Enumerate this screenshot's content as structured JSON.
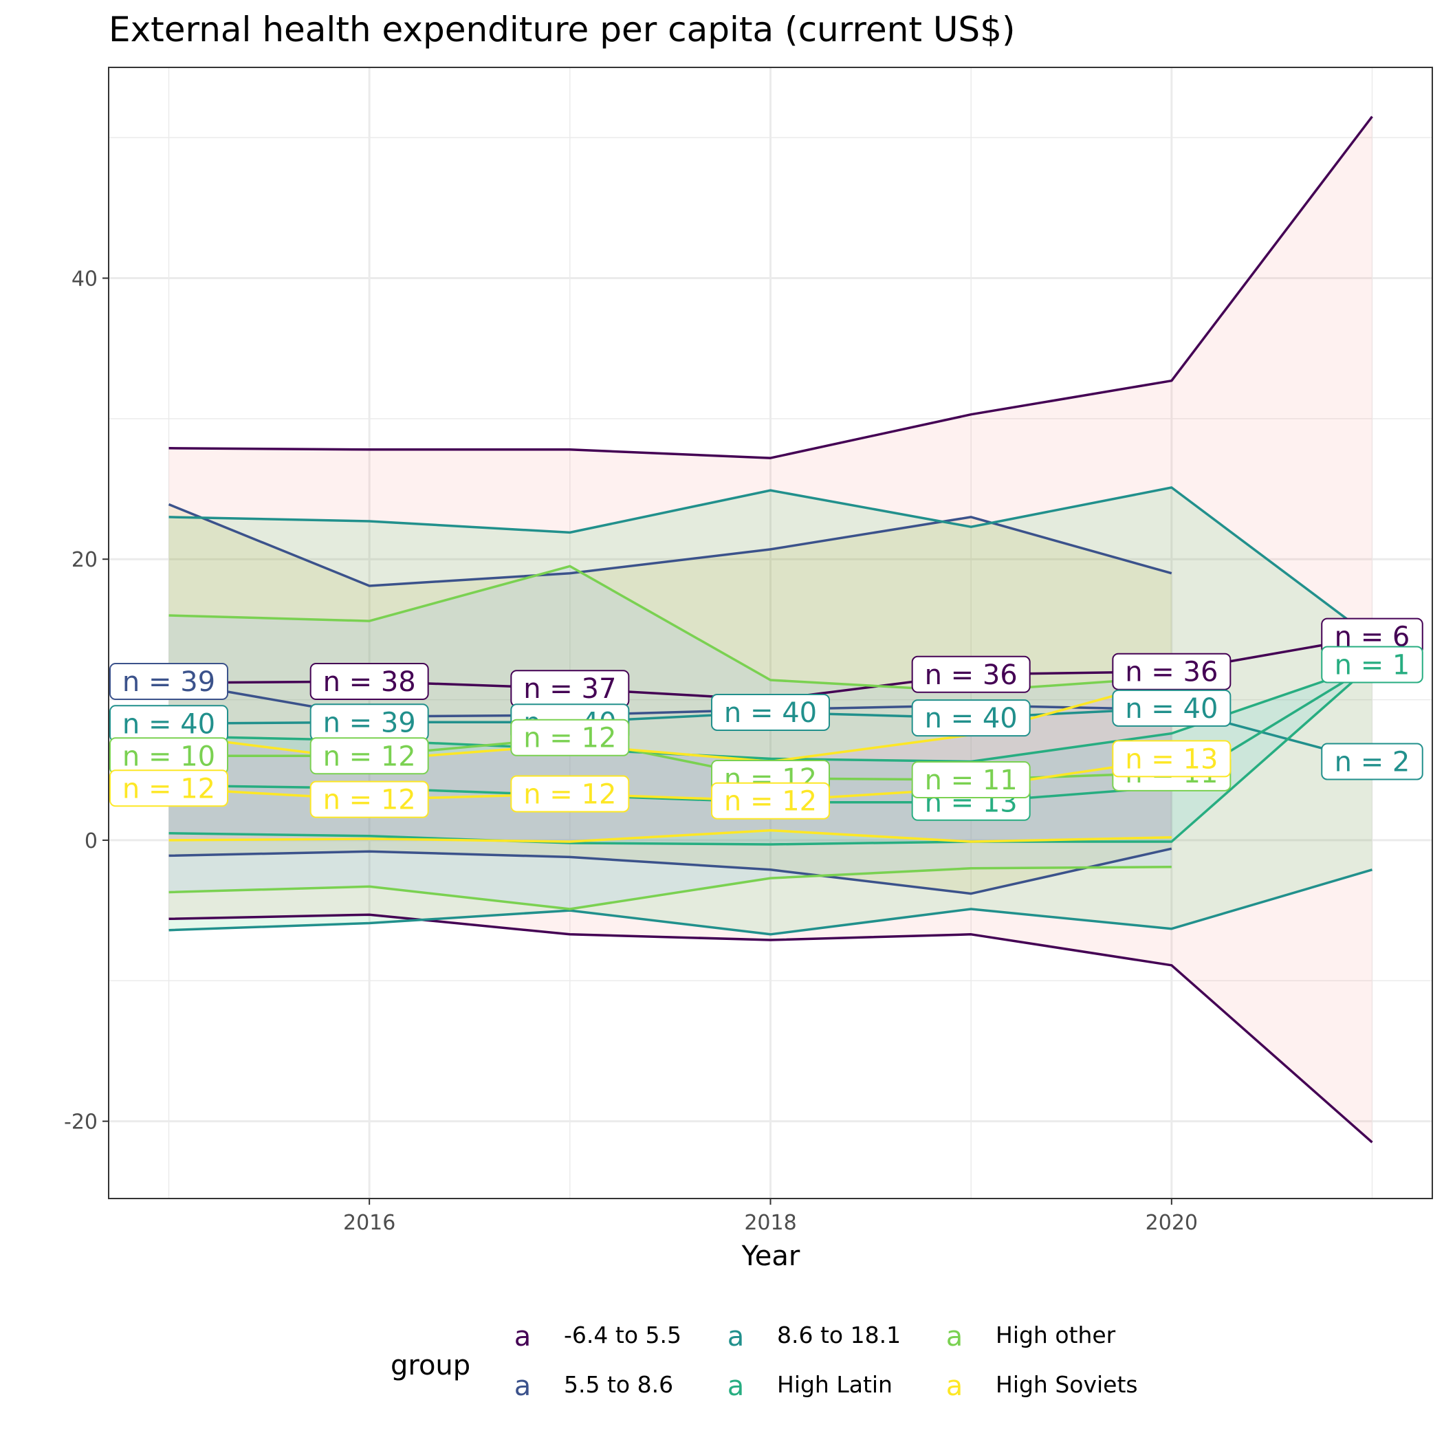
{
  "chart_data": {
    "type": "line",
    "title": "External health expenditure per capita (current US$)",
    "xlabel": "Year",
    "ylabel": "",
    "xlim": [
      2014.7,
      2021.3
    ],
    "ylim": [
      -25.5,
      55
    ],
    "x_ticks": [
      2016,
      2018,
      2020
    ],
    "y_ticks": [
      -20,
      0,
      20,
      40
    ],
    "grid": true,
    "legend": {
      "title": "group",
      "position": "bottom",
      "key_glyph": "a",
      "layout": [
        [
          0,
          2,
          4
        ],
        [
          1,
          3,
          5
        ]
      ]
    },
    "series": [
      {
        "name": "-6.4 to 5.5",
        "color": "#440154",
        "fill": "#F8766D",
        "x": [
          2015,
          2016,
          2017,
          2018,
          2019,
          2020,
          2021
        ],
        "mean": [
          11.2,
          11.3,
          10.8,
          10.0,
          11.8,
          12.0,
          14.5
        ],
        "upper": [
          27.9,
          27.8,
          27.8,
          27.2,
          30.3,
          32.7,
          51.5
        ],
        "lower": [
          -5.6,
          -5.3,
          -6.7,
          -7.1,
          -6.7,
          -8.9,
          -21.5
        ],
        "n": [
          null,
          38,
          37,
          null,
          36,
          36,
          6
        ]
      },
      {
        "name": "5.5 to 8.6",
        "color": "#3B528B",
        "fill": "#B79F00",
        "x": [
          2015,
          2016,
          2017,
          2018,
          2019,
          2020
        ],
        "mean": [
          11.3,
          8.8,
          8.9,
          9.3,
          9.6,
          9.3
        ],
        "upper": [
          23.9,
          18.1,
          19.0,
          20.7,
          23.0,
          19.0
        ],
        "lower": [
          -1.1,
          -0.8,
          -1.2,
          -2.1,
          -3.8,
          -0.6
        ],
        "n": [
          39,
          null,
          null,
          null,
          null,
          null
        ]
      },
      {
        "name": "8.6 to 18.1",
        "color": "#21908C",
        "fill": "#00BA38",
        "x": [
          2015,
          2016,
          2017,
          2018,
          2019,
          2020,
          2021
        ],
        "mean": [
          8.3,
          8.4,
          8.4,
          9.1,
          8.7,
          9.4,
          5.6
        ],
        "upper": [
          23.0,
          22.7,
          21.9,
          24.9,
          22.3,
          25.1,
          14.4
        ],
        "lower": [
          -6.4,
          -5.9,
          -5.0,
          -6.7,
          -4.9,
          -6.3,
          -2.1
        ],
        "n": [
          40,
          39,
          40,
          40,
          40,
          40,
          2
        ]
      },
      {
        "name": "High Latin",
        "color": "#27AD81",
        "fill": "#00BFC4",
        "x": [
          2015,
          2016,
          2017,
          2018,
          2019,
          2020,
          2021
        ],
        "mean": [
          3.9,
          3.7,
          3.2,
          2.7,
          2.7,
          3.8,
          12.5
        ],
        "upper": [
          7.4,
          7.1,
          6.5,
          5.8,
          5.6,
          7.6,
          12.5
        ],
        "lower": [
          0.5,
          0.3,
          -0.2,
          -0.3,
          -0.1,
          -0.1,
          12.5
        ],
        "n": [
          null,
          null,
          null,
          null,
          13,
          null,
          1
        ]
      },
      {
        "name": "High other",
        "color": "#7AD151",
        "fill": "#619CFF",
        "x": [
          2015,
          2016,
          2017,
          2018,
          2019,
          2020
        ],
        "mean": [
          6.0,
          6.0,
          7.3,
          4.4,
          4.3,
          4.8
        ],
        "upper": [
          16.0,
          15.6,
          19.5,
          11.4,
          10.6,
          11.6
        ],
        "lower": [
          -3.7,
          -3.3,
          -4.9,
          -2.7,
          -2.0,
          -1.9
        ],
        "n": [
          10,
          12,
          12,
          12,
          11,
          11
        ]
      },
      {
        "name": "High Soviets",
        "color": "#FDE725",
        "fill": "#F564E3",
        "x": [
          2015,
          2016,
          2017,
          2018,
          2019,
          2020
        ],
        "mean": [
          3.7,
          2.9,
          3.3,
          2.8,
          3.7,
          5.8
        ],
        "upper": [
          7.5,
          5.7,
          6.8,
          5.6,
          7.5,
          11.4
        ],
        "lower": [
          0.0,
          0.1,
          -0.1,
          0.7,
          -0.1,
          0.2
        ],
        "n": [
          12,
          12,
          12,
          12,
          null,
          13
        ]
      }
    ]
  }
}
